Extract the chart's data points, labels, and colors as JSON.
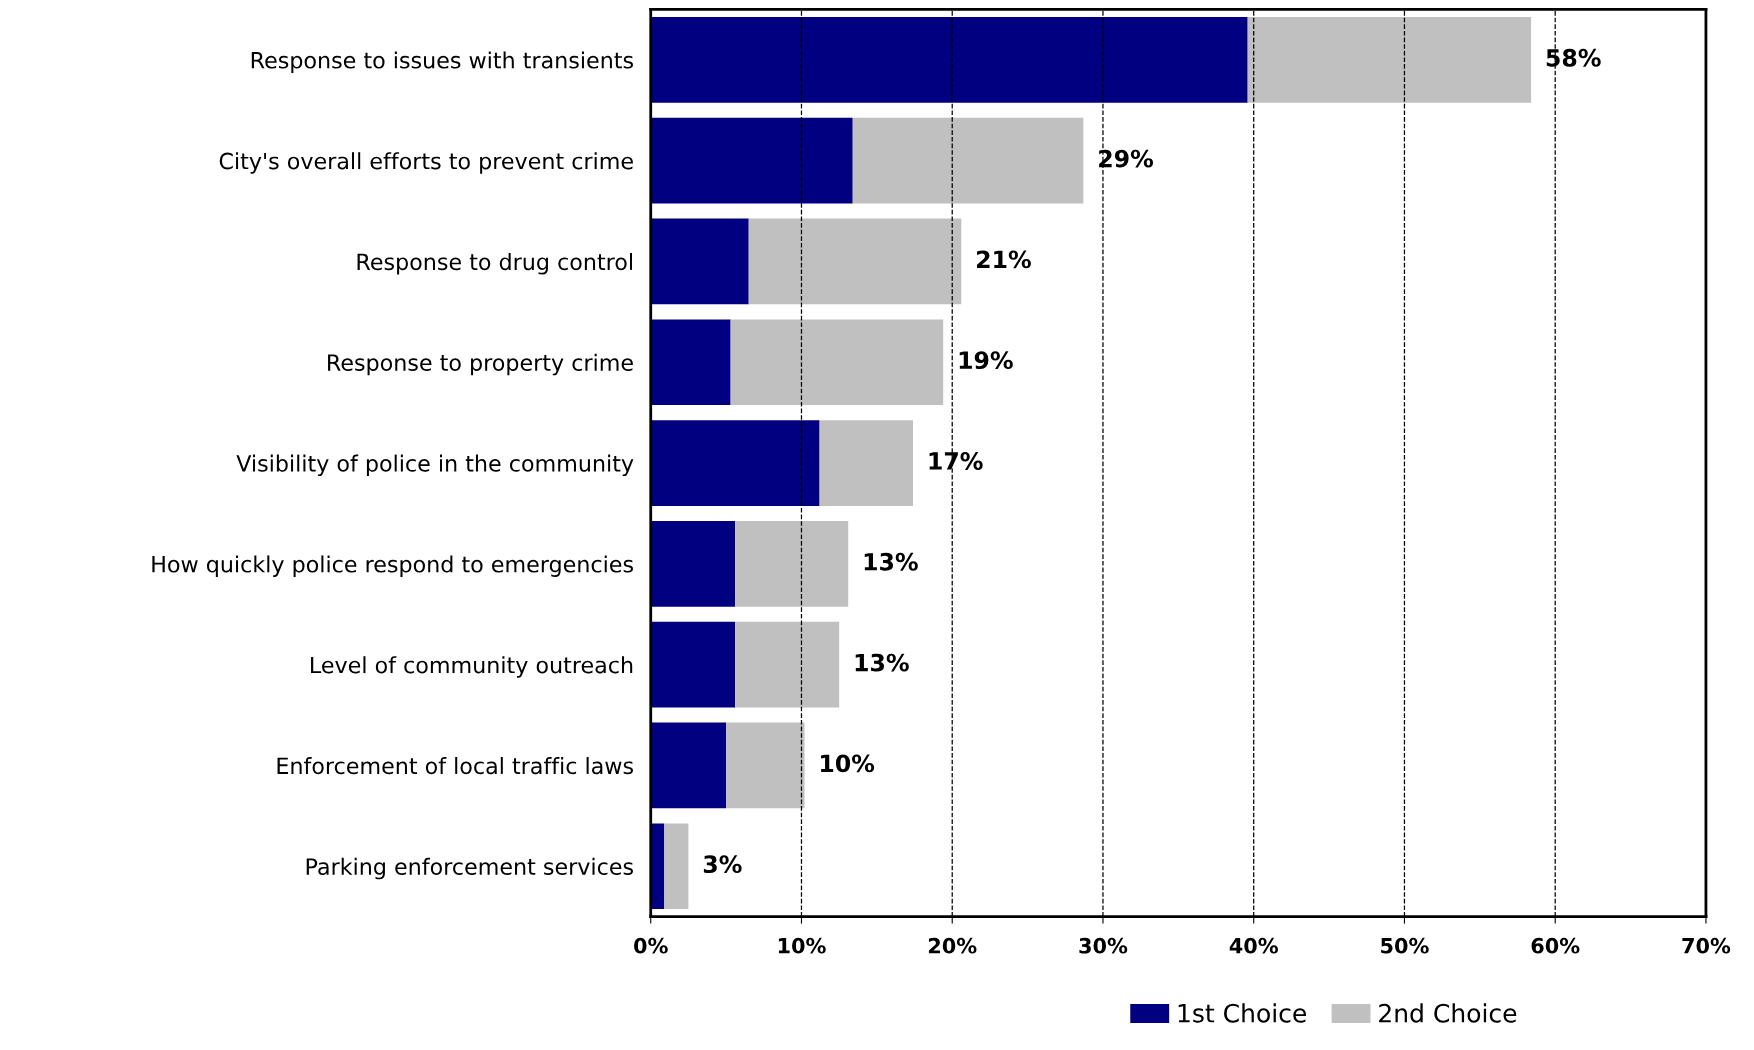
{
  "chart_data": {
    "type": "bar",
    "orientation": "horizontal",
    "stacked": true,
    "categories": [
      "Response to issues with transients",
      "City's overall efforts to prevent crime",
      "Response to drug control",
      "Response to property crime",
      "Visibility of police in the community",
      "How quickly police respond to emergencies",
      "Level of community outreach",
      "Enforcement of local traffic laws",
      "Parking enforcement services"
    ],
    "series": [
      {
        "name": "1st Choice",
        "color": "#000080",
        "values": [
          39.6,
          13.4,
          6.5,
          5.3,
          11.2,
          5.6,
          5.6,
          5.0,
          0.9
        ]
      },
      {
        "name": "2nd Choice",
        "color": "#c0c0c0",
        "values": [
          18.8,
          15.3,
          14.1,
          14.1,
          6.2,
          7.5,
          6.9,
          5.2,
          1.6
        ]
      }
    ],
    "totals": [
      "58%",
      "29%",
      "21%",
      "19%",
      "17%",
      "13%",
      "13%",
      "10%",
      "3%"
    ],
    "xlim": [
      0,
      70
    ],
    "xticks": [
      {
        "value": 0,
        "label": "0%"
      },
      {
        "value": 10,
        "label": "10%"
      },
      {
        "value": 20,
        "label": "20%"
      },
      {
        "value": 30,
        "label": "30%"
      },
      {
        "value": 40,
        "label": "40%"
      },
      {
        "value": 50,
        "label": "50%"
      },
      {
        "value": 60,
        "label": "60%"
      },
      {
        "value": 70,
        "label": "70%"
      }
    ],
    "grid": "x",
    "legend": "bottom"
  }
}
